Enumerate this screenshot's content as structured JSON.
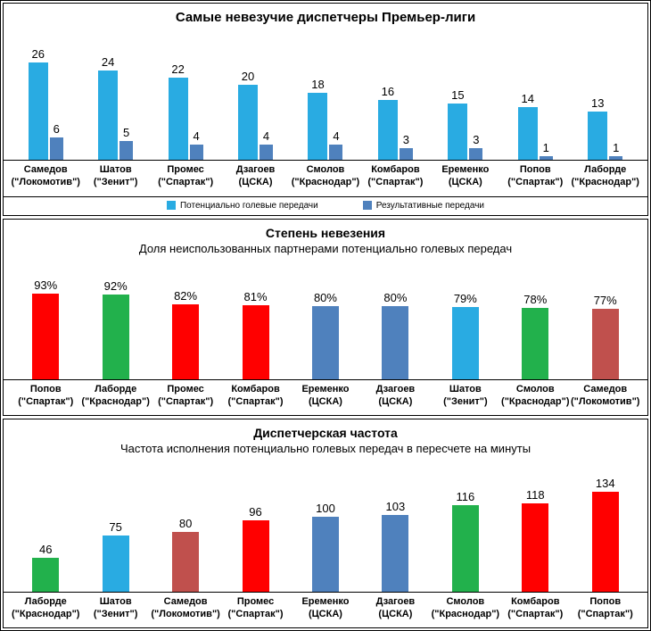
{
  "colors": {
    "cyan": "#29ABE2",
    "steel": "#4F81BD",
    "red": "#FF0000",
    "green": "#22B14C",
    "brick": "#C0504D"
  },
  "chart_data": [
    {
      "type": "bar",
      "title": "Самые невезучие диспетчеры Премьер-лиги",
      "categories": [
        {
          "name": "Самедов",
          "club": "(\"Локомотив\")"
        },
        {
          "name": "Шатов",
          "club": "(\"Зенит\")"
        },
        {
          "name": "Промес",
          "club": "(\"Спартак\")"
        },
        {
          "name": "Дзагоев",
          "club": "(ЦСКА)"
        },
        {
          "name": "Смолов",
          "club": "(\"Краснодар\")"
        },
        {
          "name": "Комбаров",
          "club": "(\"Спартак\")"
        },
        {
          "name": "Еременко",
          "club": "(ЦСКА)"
        },
        {
          "name": "Попов",
          "club": "(\"Спартак\")"
        },
        {
          "name": "Лаборде",
          "club": "(\"Краснодар\")"
        }
      ],
      "series": [
        {
          "name": "Потенциально голевые передачи",
          "color_key": "cyan",
          "values": [
            26,
            24,
            22,
            20,
            18,
            16,
            15,
            14,
            13
          ]
        },
        {
          "name": "Результативные передачи",
          "color_key": "steel",
          "values": [
            6,
            5,
            4,
            4,
            4,
            3,
            3,
            1,
            1
          ]
        }
      ],
      "ylim": [
        0,
        28
      ],
      "legend_position": "bottom",
      "grid": false
    },
    {
      "type": "bar",
      "title": "Степень невезения",
      "subtitle": "Доля неиспользованных партнерами потенциально голевых передач",
      "categories": [
        {
          "name": "Попов",
          "club": "(\"Спартак\")"
        },
        {
          "name": "Лаборде",
          "club": "(\"Краснодар\")"
        },
        {
          "name": "Промес",
          "club": "(\"Спартак\")"
        },
        {
          "name": "Комбаров",
          "club": "(\"Спартак\")"
        },
        {
          "name": "Еременко",
          "club": "(ЦСКА)"
        },
        {
          "name": "Дзагоев",
          "club": "(ЦСКА)"
        },
        {
          "name": "Шатов",
          "club": "(\"Зенит\")"
        },
        {
          "name": "Смолов",
          "club": "(\"Краснодар\")"
        },
        {
          "name": "Самедов",
          "club": "(\"Локомотив\")"
        }
      ],
      "values": [
        93,
        92,
        82,
        81,
        80,
        80,
        79,
        78,
        77
      ],
      "value_suffix": "%",
      "bar_colors": [
        "red",
        "green",
        "red",
        "red",
        "steel",
        "steel",
        "cyan",
        "green",
        "brick"
      ],
      "ylim": [
        0,
        100
      ],
      "grid": false
    },
    {
      "type": "bar",
      "title": "Диспетчерская частота",
      "subtitle": "Частота исполнения потенциально голевых передач в пересчете на минуты",
      "categories": [
        {
          "name": "Лаборде",
          "club": "(\"Краснодар\")"
        },
        {
          "name": "Шатов",
          "club": "(\"Зенит\")"
        },
        {
          "name": "Самедов",
          "club": "(\"Локомотив\")"
        },
        {
          "name": "Промес",
          "club": "(\"Спартак\")"
        },
        {
          "name": "Еременко",
          "club": "(ЦСКА)"
        },
        {
          "name": "Дзагоев",
          "club": "(ЦСКА)"
        },
        {
          "name": "Смолов",
          "club": "(\"Краснодар\")"
        },
        {
          "name": "Комбаров",
          "club": "(\"Спартак\")"
        },
        {
          "name": "Попов",
          "club": "(\"Спартак\")"
        }
      ],
      "values": [
        46,
        75,
        80,
        96,
        100,
        103,
        116,
        118,
        134
      ],
      "value_suffix": "",
      "bar_colors": [
        "green",
        "cyan",
        "brick",
        "red",
        "steel",
        "steel",
        "green",
        "red",
        "red"
      ],
      "ylim": [
        0,
        140
      ],
      "grid": false
    }
  ]
}
